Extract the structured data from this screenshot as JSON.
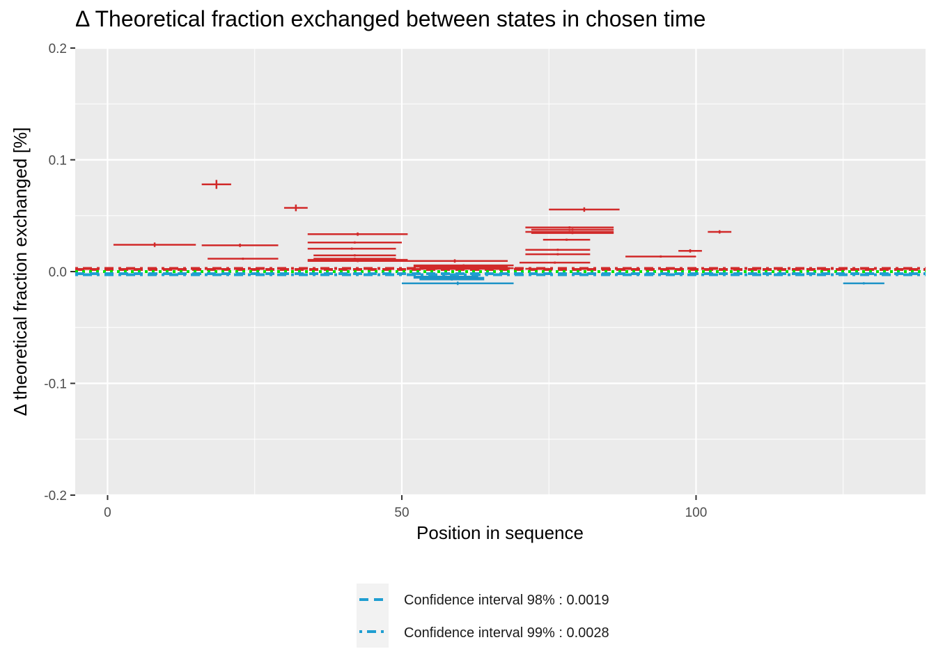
{
  "chart_data": {
    "type": "scatter",
    "title": "Δ Theoretical fraction exchanged between states in chosen time",
    "xlabel": "Position in sequence",
    "ylabel": "Δ theoretical fraction exchanged [%]",
    "xlim": [
      -5.5,
      139
    ],
    "ylim": [
      -0.2,
      0.2
    ],
    "x_ticks": [
      0,
      50,
      100
    ],
    "x_tick_labels": [
      "0",
      "50",
      "100"
    ],
    "y_ticks": [
      -0.2,
      -0.1,
      0.0,
      0.1,
      0.2
    ],
    "y_tick_labels": [
      "-0.2",
      "-0.1",
      "0.0",
      "0.1",
      "0.2"
    ],
    "grid": true,
    "legend_position": "bottom",
    "legend": [
      {
        "label": "Confidence interval 98% : 0.0019",
        "color": "#1f9ed1",
        "linetype": "dashed"
      },
      {
        "label": "Confidence interval 99% : 0.0028",
        "color": "#1f9ed1",
        "linetype": "dotdash"
      }
    ],
    "colors": {
      "positive": "#d12a2a",
      "negative": "#1c93c7",
      "zero_line": "#00e400",
      "ci": "#d12a2a",
      "ci_neg": "#1f9ed1"
    },
    "threshold_lines": [
      {
        "y": 0.0028,
        "color": "#d12a2a",
        "linetype": "dotdash"
      },
      {
        "y": 0.0019,
        "color": "#d12a2a",
        "linetype": "dashed"
      },
      {
        "y": 0.0,
        "color": "#00e400",
        "linetype": "dotted"
      },
      {
        "y": -0.0019,
        "color": "#1f9ed1",
        "linetype": "dashed"
      },
      {
        "y": -0.0028,
        "color": "#1f9ed1",
        "linetype": "dotdash"
      }
    ],
    "segments": [
      {
        "start": 1,
        "end": 15,
        "value": 0.024,
        "err": 0.002
      },
      {
        "start": 16,
        "end": 21,
        "value": 0.078,
        "err": 0.004
      },
      {
        "start": 16,
        "end": 29,
        "value": 0.0235,
        "err": 0.0015
      },
      {
        "start": 17,
        "end": 29,
        "value": 0.0115,
        "err": 0.001
      },
      {
        "start": 30,
        "end": 34,
        "value": 0.057,
        "err": 0.003
      },
      {
        "start": 34,
        "end": 51,
        "value": 0.0335,
        "err": 0.0015
      },
      {
        "start": 34,
        "end": 50,
        "value": 0.026,
        "err": 0.001
      },
      {
        "start": 34,
        "end": 49,
        "value": 0.0205,
        "err": 0.001
      },
      {
        "start": 35,
        "end": 49,
        "value": 0.0145,
        "err": 0.001
      },
      {
        "start": 35,
        "end": 49,
        "value": 0.0115,
        "err": 0.001
      },
      {
        "start": 34,
        "end": 51,
        "value": 0.0105,
        "err": 0.001
      },
      {
        "start": 34,
        "end": 51,
        "value": 0.0095,
        "err": 0.001
      },
      {
        "start": 50,
        "end": 68,
        "value": 0.0095,
        "err": 0.0015
      },
      {
        "start": 52,
        "end": 69,
        "value": 0.0055,
        "err": 0.001
      },
      {
        "start": 52,
        "end": 68,
        "value": 0.0045,
        "err": 0.001
      },
      {
        "start": 53,
        "end": 69,
        "value": 0.003,
        "err": 0.001
      },
      {
        "start": 51,
        "end": 66,
        "value": 0.0025,
        "err": 0.001
      },
      {
        "start": 52,
        "end": 63,
        "value": -0.0045,
        "err": 0.001
      },
      {
        "start": 52,
        "end": 64,
        "value": -0.0055,
        "err": 0.001
      },
      {
        "start": 53,
        "end": 64,
        "value": -0.007,
        "err": 0.001
      },
      {
        "start": 50,
        "end": 69,
        "value": -0.0105,
        "err": 0.0015
      },
      {
        "start": 70,
        "end": 82,
        "value": 0.008,
        "err": 0.001
      },
      {
        "start": 71,
        "end": 82,
        "value": 0.0155,
        "err": 0.001
      },
      {
        "start": 71,
        "end": 82,
        "value": 0.0195,
        "err": 0.001
      },
      {
        "start": 71,
        "end": 86,
        "value": 0.0395,
        "err": 0.001
      },
      {
        "start": 72,
        "end": 86,
        "value": 0.0375,
        "err": 0.001
      },
      {
        "start": 71,
        "end": 86,
        "value": 0.0355,
        "err": 0.001
      },
      {
        "start": 72,
        "end": 86,
        "value": 0.0345,
        "err": 0.001
      },
      {
        "start": 74,
        "end": 82,
        "value": 0.0285,
        "err": 0.001
      },
      {
        "start": 75,
        "end": 87,
        "value": 0.0555,
        "err": 0.002
      },
      {
        "start": 71,
        "end": 75,
        "value": 0.0025,
        "err": 0.001
      },
      {
        "start": 88,
        "end": 100,
        "value": 0.0135,
        "err": 0.001
      },
      {
        "start": 97,
        "end": 101,
        "value": 0.0185,
        "err": 0.0015
      },
      {
        "start": 102,
        "end": 106,
        "value": 0.0355,
        "err": 0.0015
      },
      {
        "start": 125,
        "end": 132,
        "value": -0.0105,
        "err": 0.001
      }
    ]
  }
}
